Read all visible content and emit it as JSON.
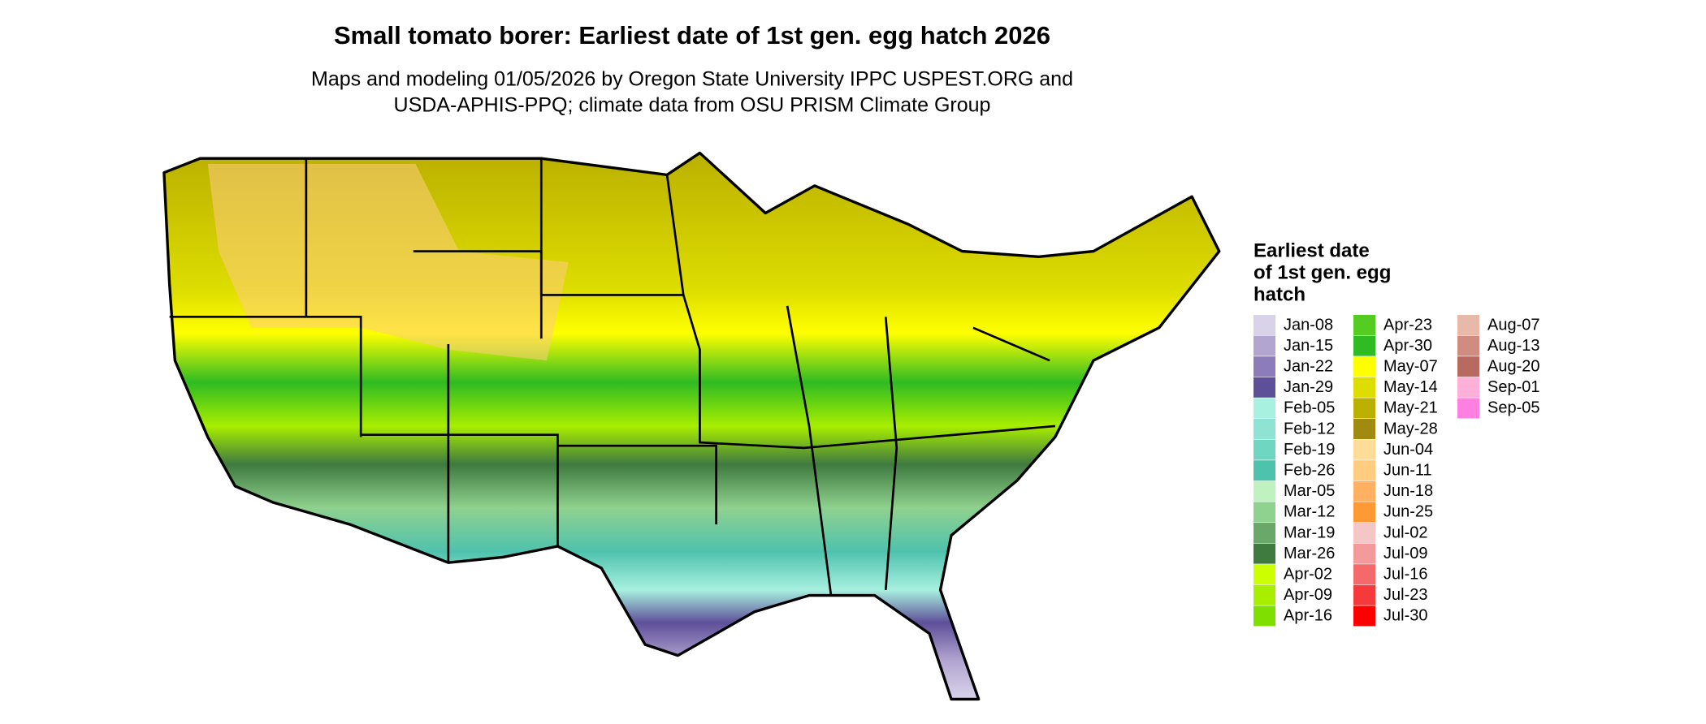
{
  "header": {
    "title": "Small tomato borer: Earliest date of 1st gen. egg hatch 2026",
    "subtitle": [
      "Maps and modeling 01/05/2026 by Oregon State University IPPC USPEST.ORG and",
      "USDA-APHIS-PPQ; climate data from OSU PRISM Climate Group"
    ]
  },
  "legend": {
    "title": [
      "Earliest date",
      "of 1st gen. egg",
      "hatch"
    ],
    "items": [
      {
        "label": "Jan-08",
        "color": "#d9d3ea"
      },
      {
        "label": "Jan-15",
        "color": "#b2a6d0"
      },
      {
        "label": "Jan-22",
        "color": "#8c7cba"
      },
      {
        "label": "Jan-29",
        "color": "#5e4f99"
      },
      {
        "label": "Feb-05",
        "color": "#a8f0e0"
      },
      {
        "label": "Feb-12",
        "color": "#8ee3d2"
      },
      {
        "label": "Feb-19",
        "color": "#6fd6c2"
      },
      {
        "label": "Feb-26",
        "color": "#4fc2ad"
      },
      {
        "label": "Mar-05",
        "color": "#bff2bf"
      },
      {
        "label": "Mar-12",
        "color": "#8fd18f"
      },
      {
        "label": "Mar-19",
        "color": "#6aa86a"
      },
      {
        "label": "Mar-26",
        "color": "#3f7a3f"
      },
      {
        "label": "Apr-02",
        "color": "#ccff00"
      },
      {
        "label": "Apr-09",
        "color": "#a8ee00"
      },
      {
        "label": "Apr-16",
        "color": "#7fe000"
      },
      {
        "label": "Apr-23",
        "color": "#55cc22"
      },
      {
        "label": "Apr-30",
        "color": "#2fbb22"
      },
      {
        "label": "May-07",
        "color": "#ffff00"
      },
      {
        "label": "May-14",
        "color": "#dddd00"
      },
      {
        "label": "May-21",
        "color": "#bbb000"
      },
      {
        "label": "May-28",
        "color": "#a08a10"
      },
      {
        "label": "Jun-04",
        "color": "#ffdd99"
      },
      {
        "label": "Jun-11",
        "color": "#ffcc80"
      },
      {
        "label": "Jun-18",
        "color": "#ffb060"
      },
      {
        "label": "Jun-25",
        "color": "#ff9933"
      },
      {
        "label": "Jul-02",
        "color": "#f4c6c6"
      },
      {
        "label": "Jul-09",
        "color": "#f49a9a"
      },
      {
        "label": "Jul-16",
        "color": "#f46a6a"
      },
      {
        "label": "Jul-23",
        "color": "#f43a3a"
      },
      {
        "label": "Jul-30",
        "color": "#ff0000"
      },
      {
        "label": "Aug-07",
        "color": "#e8b8a8"
      },
      {
        "label": "Aug-13",
        "color": "#d08c80"
      },
      {
        "label": "Aug-20",
        "color": "#b86a60"
      },
      {
        "label": "Sep-01",
        "color": "#ffb0d8"
      },
      {
        "label": "Sep-05",
        "color": "#ff80e0"
      }
    ]
  }
}
